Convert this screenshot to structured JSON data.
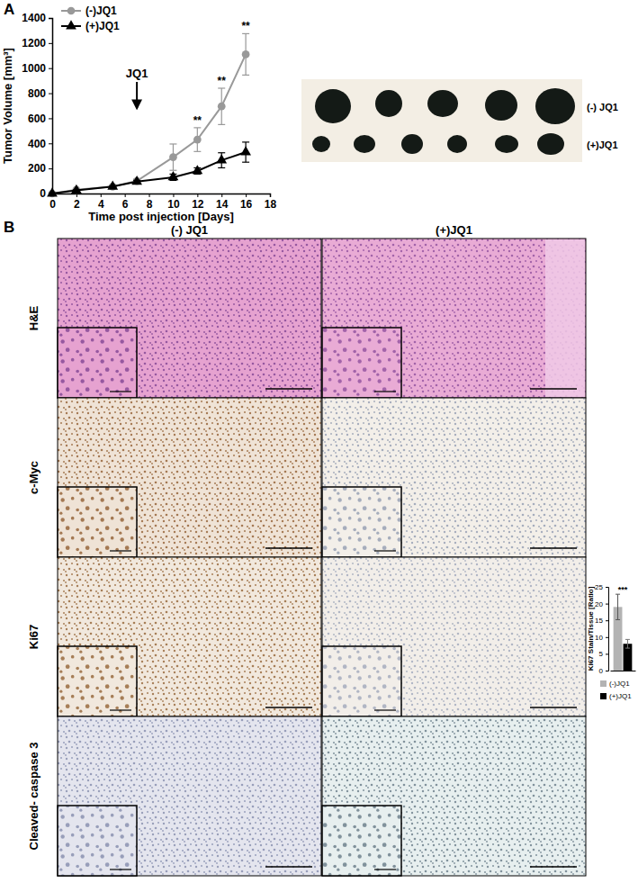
{
  "figure": {
    "panel_labels": [
      "A",
      "B"
    ],
    "photo_labels": [
      "(-) JQ1",
      "(+)JQ1"
    ],
    "column_labels": [
      "(-) JQ1",
      "(+)JQ1"
    ],
    "row_labels": [
      "H&E",
      "c-Myc",
      "Ki67",
      "Cleaved- caspase 3"
    ]
  },
  "chart_data": [
    {
      "type": "line",
      "x_label": "Time post injection [Days]",
      "y_label": "Tumor Volume [mm³]",
      "x": [
        0,
        2,
        5,
        7,
        10,
        12,
        14,
        16
      ],
      "xlim": [
        0,
        18
      ],
      "xticks": [
        0,
        2,
        4,
        6,
        8,
        10,
        12,
        14,
        16,
        18
      ],
      "ylim": [
        0,
        1400
      ],
      "yticks": [
        0,
        200,
        400,
        600,
        800,
        1000,
        1200,
        1400
      ],
      "grid": false,
      "legend": "top-left",
      "series": [
        {
          "name": "(-)JQ1",
          "color": "#999999",
          "marker": "circle",
          "line_style": "solid",
          "values": [
            0,
            30,
            55,
            100,
            290,
            430,
            695,
            1110
          ],
          "errors": [
            0,
            5,
            10,
            15,
            105,
            95,
            145,
            165
          ]
        },
        {
          "name": "(+)JQ1",
          "color": "#000000",
          "marker": "triangle",
          "line_style": "solid",
          "values": [
            0,
            25,
            55,
            95,
            130,
            180,
            265,
            330
          ],
          "errors": [
            0,
            5,
            5,
            10,
            25,
            25,
            60,
            80
          ]
        }
      ],
      "annotations": [
        {
          "text": "JQ1",
          "x": 7
        }
      ],
      "significance": [
        {
          "text": "**",
          "x": 12
        },
        {
          "text": "**",
          "x": 14
        },
        {
          "text": "**",
          "x": 16
        }
      ]
    },
    {
      "type": "bar",
      "y_label": "Ki67 Stain/Tissue [Ratio]",
      "categories": [
        null
      ],
      "ylim": [
        0,
        25
      ],
      "yticks": [
        0,
        5,
        10,
        15,
        20,
        25
      ],
      "grid": false,
      "legend": "right",
      "series": [
        {
          "name": "(-)JQ1",
          "color": "#b3b3b3",
          "values": [
            19
          ],
          "errors": [
            3.8
          ]
        },
        {
          "name": "(+)JQ1",
          "color": "#000000",
          "values": [
            8
          ],
          "errors": [
            1.3
          ]
        }
      ],
      "significance": [
        {
          "text": "***"
        }
      ]
    }
  ]
}
